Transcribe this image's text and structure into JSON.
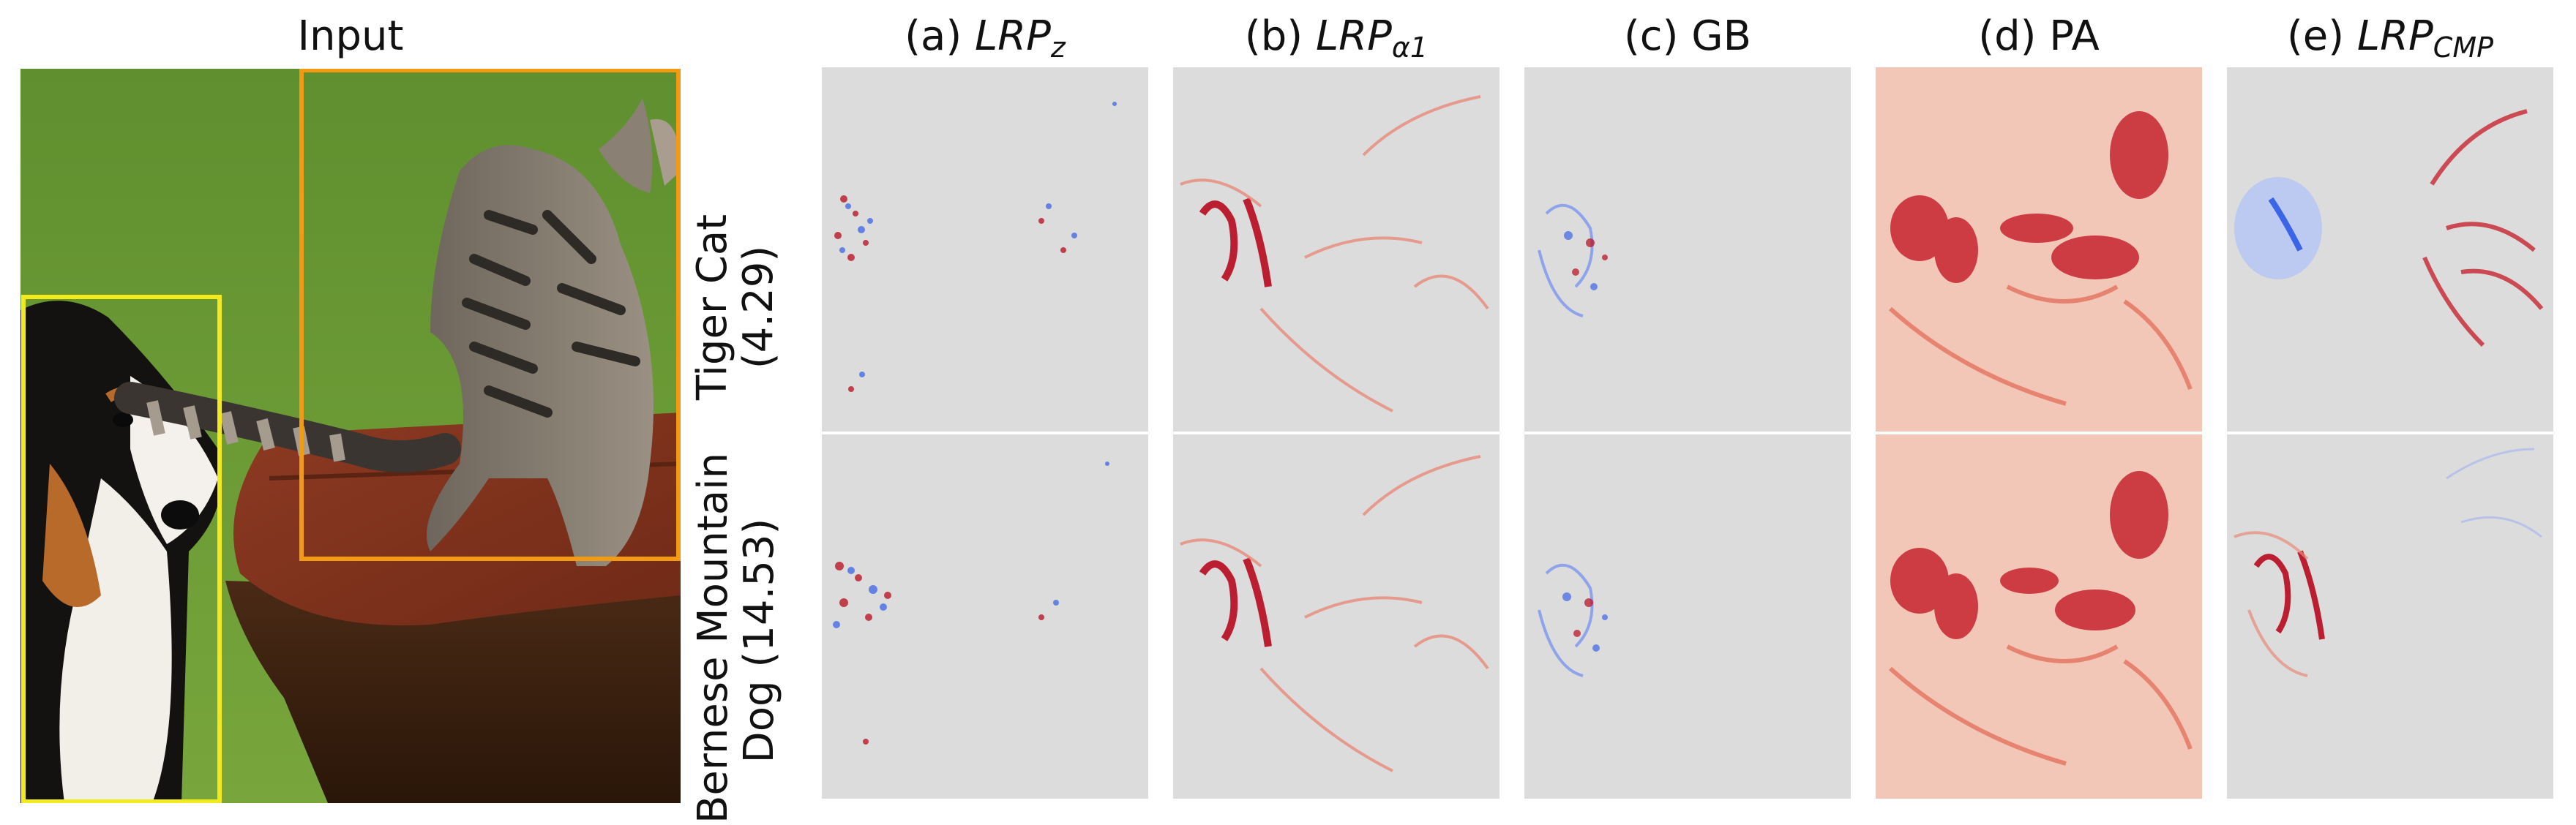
{
  "input": {
    "title": "Input"
  },
  "columns": [
    {
      "prefix": "(a) ",
      "name": "LRP",
      "sub": "z",
      "italic": true
    },
    {
      "prefix": "(b) ",
      "name": "LRP",
      "sub": "α1",
      "italic": true
    },
    {
      "prefix": "(c) ",
      "name": "GB",
      "sub": "",
      "italic": false
    },
    {
      "prefix": "(d) ",
      "name": "PA",
      "sub": "",
      "italic": false
    },
    {
      "prefix": "(e) ",
      "name": "LRP",
      "sub": "CMP",
      "italic": true
    }
  ],
  "rows": [
    {
      "line1": "Tiger Cat",
      "line2": "(4.29)"
    },
    {
      "line1": "Bernese Mountain",
      "line2": "Dog (14.53)"
    }
  ],
  "colors": {
    "heatmap_background": "#dcdcdc",
    "positive_relevance": "#b80a1e",
    "negative_relevance": "#3c64e6",
    "dog_box": "#f2ea1c",
    "cat_box": "#f29a12"
  }
}
